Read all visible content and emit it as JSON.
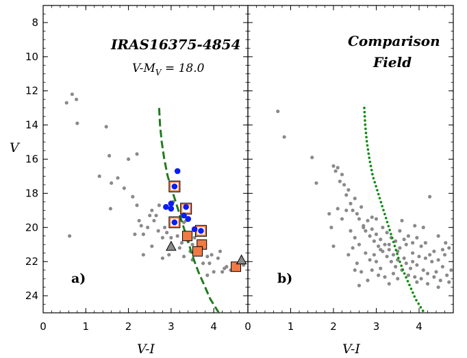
{
  "chart_data": [
    {
      "type": "scatter",
      "panel_label": "a)",
      "title": "IRAS16375-4854",
      "subtitle": "V-M",
      "subtitle_sub": "V",
      "subtitle_tail": " = 18.0",
      "xlabel": "V-I",
      "ylabel": "V",
      "xlim": [
        0,
        4.8
      ],
      "ylim": [
        25,
        7
      ],
      "y_inverted": true,
      "x_ticks": [
        0,
        1,
        2,
        3,
        4
      ],
      "y_ticks": [
        8,
        10,
        12,
        14,
        16,
        18,
        20,
        22,
        24
      ],
      "colors": {
        "field": "#8a8a8a",
        "blue": "#0b1ef0",
        "square": "#f07a45",
        "triangle": "#8a8a8a",
        "isochrone": "#1f7a1f"
      },
      "isochrone": {
        "style": "dashed",
        "points": [
          [
            2.72,
            13.0
          ],
          [
            2.74,
            14.0
          ],
          [
            2.78,
            15.0
          ],
          [
            2.84,
            16.0
          ],
          [
            2.92,
            17.0
          ],
          [
            3.02,
            17.8
          ],
          [
            3.12,
            18.6
          ],
          [
            3.22,
            19.4
          ],
          [
            3.32,
            20.2
          ],
          [
            3.42,
            21.0
          ],
          [
            3.52,
            21.8
          ],
          [
            3.64,
            22.6
          ],
          [
            3.78,
            23.4
          ],
          [
            3.92,
            24.2
          ],
          [
            4.12,
            25.0
          ]
        ]
      },
      "series": [
        {
          "marker": "gray-dot",
          "points": [
            [
              0.55,
              12.7
            ],
            [
              0.68,
              12.2
            ],
            [
              0.78,
              12.5
            ],
            [
              0.8,
              13.9
            ],
            [
              0.62,
              20.5
            ],
            [
              1.48,
              14.1
            ],
            [
              1.55,
              15.8
            ],
            [
              1.58,
              18.9
            ],
            [
              1.32,
              17.0
            ],
            [
              1.6,
              17.4
            ],
            [
              1.75,
              17.1
            ],
            [
              1.9,
              17.7
            ],
            [
              2.0,
              16.0
            ],
            [
              2.2,
              15.7
            ],
            [
              2.1,
              18.2
            ],
            [
              2.2,
              18.7
            ],
            [
              2.25,
              19.6
            ],
            [
              2.3,
              19.9
            ],
            [
              2.35,
              20.4
            ],
            [
              2.45,
              20.0
            ],
            [
              2.5,
              19.3
            ],
            [
              2.55,
              19.0
            ],
            [
              2.6,
              19.6
            ],
            [
              2.65,
              19.3
            ],
            [
              2.7,
              20.2
            ],
            [
              2.72,
              18.7
            ],
            [
              2.8,
              20.6
            ],
            [
              2.85,
              20.0
            ],
            [
              2.9,
              20.3
            ],
            [
              2.95,
              21.6
            ],
            [
              3.0,
              20.6
            ],
            [
              3.05,
              18.5
            ],
            [
              3.1,
              19.8
            ],
            [
              3.15,
              20.5
            ],
            [
              3.2,
              21.2
            ],
            [
              3.25,
              20.9
            ],
            [
              3.3,
              19.7
            ],
            [
              3.35,
              19.6
            ],
            [
              3.4,
              20.8
            ],
            [
              3.45,
              21.4
            ],
            [
              3.5,
              21.0
            ],
            [
              3.55,
              20.6
            ],
            [
              3.6,
              20.4
            ],
            [
              3.65,
              21.3
            ],
            [
              3.7,
              21.5
            ],
            [
              3.75,
              22.1
            ],
            [
              3.8,
              21.0
            ],
            [
              3.85,
              21.7
            ],
            [
              3.9,
              22.1
            ],
            [
              3.95,
              21.6
            ],
            [
              4.0,
              22.6
            ],
            [
              4.1,
              21.8
            ],
            [
              4.15,
              21.4
            ],
            [
              4.2,
              22.6
            ],
            [
              4.25,
              22.4
            ],
            [
              4.3,
              22.3
            ],
            [
              4.4,
              22.5
            ],
            [
              4.55,
              22.4
            ],
            [
              4.7,
              22.2
            ],
            [
              2.35,
              21.6
            ],
            [
              2.55,
              21.1
            ],
            [
              2.8,
              21.8
            ],
            [
              3.3,
              21.7
            ],
            [
              3.5,
              21.9
            ],
            [
              2.15,
              20.4
            ],
            [
              3.85,
              22.8
            ]
          ]
        },
        {
          "marker": "blue-dot",
          "points": [
            [
              3.15,
              16.7
            ],
            [
              3.08,
              17.6
            ],
            [
              3.0,
              18.6
            ],
            [
              2.88,
              18.8
            ],
            [
              3.0,
              18.9
            ],
            [
              3.35,
              18.8
            ],
            [
              3.3,
              19.3
            ],
            [
              3.4,
              19.5
            ],
            [
              3.08,
              19.7
            ],
            [
              3.55,
              20.1
            ],
            [
              3.7,
              20.2
            ]
          ]
        },
        {
          "marker": "orange-square",
          "points": [
            [
              3.38,
              20.5
            ],
            [
              3.72,
              21.0
            ],
            [
              3.62,
              21.4
            ],
            [
              4.52,
              22.3
            ]
          ]
        },
        {
          "marker": "boxed-blue-dot",
          "points": [
            [
              3.08,
              17.6
            ],
            [
              3.35,
              18.9
            ],
            [
              3.08,
              19.7
            ],
            [
              3.7,
              20.2
            ]
          ]
        },
        {
          "marker": "gray-triangle",
          "points": [
            [
              3.0,
              21.1
            ],
            [
              4.65,
              21.9
            ]
          ]
        }
      ]
    },
    {
      "type": "scatter",
      "panel_label": "b)",
      "title_line1": "Comparison",
      "title_line2": "Field",
      "xlabel": "V-I",
      "xlim": [
        0,
        4.8
      ],
      "ylim": [
        25,
        7
      ],
      "y_inverted": true,
      "x_ticks": [
        0,
        1,
        2,
        3,
        4
      ],
      "colors": {
        "field": "#8a8a8a",
        "isochrone": "#108a10"
      },
      "isochrone": {
        "style": "dotted",
        "points": [
          [
            2.72,
            13.0
          ],
          [
            2.74,
            14.0
          ],
          [
            2.78,
            15.0
          ],
          [
            2.84,
            16.0
          ],
          [
            2.92,
            17.0
          ],
          [
            3.02,
            17.8
          ],
          [
            3.12,
            18.6
          ],
          [
            3.22,
            19.4
          ],
          [
            3.32,
            20.2
          ],
          [
            3.42,
            21.0
          ],
          [
            3.52,
            21.8
          ],
          [
            3.64,
            22.6
          ],
          [
            3.78,
            23.4
          ],
          [
            3.92,
            24.2
          ],
          [
            4.12,
            25.0
          ]
        ]
      },
      "series": [
        {
          "marker": "gray-dot",
          "points": [
            [
              0.7,
              13.2
            ],
            [
              0.85,
              14.7
            ],
            [
              1.5,
              15.9
            ],
            [
              1.6,
              17.4
            ],
            [
              1.9,
              19.2
            ],
            [
              2.0,
              16.4
            ],
            [
              2.05,
              16.7
            ],
            [
              2.1,
              16.5
            ],
            [
              2.15,
              17.3
            ],
            [
              2.2,
              16.9
            ],
            [
              2.25,
              17.5
            ],
            [
              2.3,
              18.1
            ],
            [
              2.35,
              17.8
            ],
            [
              2.4,
              18.6
            ],
            [
              2.45,
              19.0
            ],
            [
              2.5,
              18.3
            ],
            [
              2.55,
              19.2
            ],
            [
              2.6,
              19.5
            ],
            [
              2.65,
              18.8
            ],
            [
              2.7,
              19.9
            ],
            [
              2.75,
              20.2
            ],
            [
              2.8,
              19.6
            ],
            [
              2.85,
              20.5
            ],
            [
              2.9,
              20.1
            ],
            [
              2.95,
              20.8
            ],
            [
              3.0,
              20.4
            ],
            [
              3.05,
              21.1
            ],
            [
              3.1,
              20.7
            ],
            [
              3.15,
              21.4
            ],
            [
              3.2,
              21.0
            ],
            [
              3.25,
              21.7
            ],
            [
              3.3,
              21.3
            ],
            [
              3.35,
              22.0
            ],
            [
              3.4,
              21.6
            ],
            [
              3.45,
              22.3
            ],
            [
              3.5,
              21.9
            ],
            [
              3.55,
              21.2
            ],
            [
              3.6,
              22.5
            ],
            [
              3.65,
              21.8
            ],
            [
              3.7,
              22.1
            ],
            [
              3.75,
              22.8
            ],
            [
              3.8,
              22.4
            ],
            [
              3.85,
              21.5
            ],
            [
              3.9,
              22.9
            ],
            [
              3.95,
              22.2
            ],
            [
              4.0,
              21.7
            ],
            [
              4.05,
              23.0
            ],
            [
              4.1,
              22.5
            ],
            [
              4.15,
              20.9
            ],
            [
              4.2,
              22.7
            ],
            [
              4.25,
              18.2
            ],
            [
              4.3,
              22.0
            ],
            [
              4.35,
              21.4
            ],
            [
              4.4,
              22.6
            ],
            [
              4.45,
              21.9
            ],
            [
              4.5,
              23.1
            ],
            [
              4.55,
              22.3
            ],
            [
              4.6,
              21.6
            ],
            [
              4.65,
              22.8
            ],
            [
              4.7,
              21.2
            ],
            [
              4.75,
              22.5
            ],
            [
              2.3,
              19.0
            ],
            [
              2.4,
              20.2
            ],
            [
              2.5,
              20.6
            ],
            [
              2.6,
              21.0
            ],
            [
              2.7,
              20.0
            ],
            [
              2.75,
              21.5
            ],
            [
              2.85,
              21.9
            ],
            [
              2.9,
              19.4
            ],
            [
              3.0,
              22.0
            ],
            [
              3.1,
              22.4
            ],
            [
              3.2,
              22.9
            ],
            [
              3.3,
              23.3
            ],
            [
              3.4,
              22.7
            ],
            [
              3.5,
              23.0
            ],
            [
              3.0,
              19.5
            ],
            [
              3.15,
              20.0
            ],
            [
              3.25,
              20.3
            ],
            [
              3.35,
              20.6
            ],
            [
              2.1,
              18.9
            ],
            [
              2.2,
              19.5
            ],
            [
              2.45,
              21.2
            ],
            [
              2.55,
              22.1
            ],
            [
              2.65,
              22.6
            ],
            [
              2.95,
              21.6
            ],
            [
              3.05,
              22.8
            ],
            [
              3.45,
              20.8
            ],
            [
              3.55,
              20.2
            ],
            [
              3.65,
              20.7
            ],
            [
              3.75,
              20.5
            ],
            [
              3.85,
              20.9
            ],
            [
              3.95,
              20.6
            ],
            [
              4.05,
              21.1
            ],
            [
              4.15,
              21.8
            ],
            [
              4.25,
              21.6
            ],
            [
              4.35,
              22.9
            ],
            [
              4.45,
              20.5
            ],
            [
              4.55,
              21.3
            ],
            [
              4.62,
              20.9
            ],
            [
              4.7,
              23.2
            ],
            [
              2.35,
              21.6
            ],
            [
              2.5,
              22.5
            ],
            [
              2.6,
              23.4
            ],
            [
              2.8,
              23.1
            ],
            [
              2.9,
              22.5
            ],
            [
              1.95,
              20.0
            ],
            [
              2.0,
              21.1
            ],
            [
              3.6,
              19.6
            ],
            [
              3.9,
              19.9
            ],
            [
              4.1,
              20.0
            ],
            [
              3.1,
              21.3
            ],
            [
              3.3,
              21.0
            ],
            [
              3.5,
              21.4
            ],
            [
              3.7,
              21.0
            ],
            [
              3.85,
              22.0
            ],
            [
              3.95,
              23.2
            ],
            [
              4.2,
              23.3
            ],
            [
              4.45,
              23.5
            ]
          ]
        }
      ]
    }
  ]
}
